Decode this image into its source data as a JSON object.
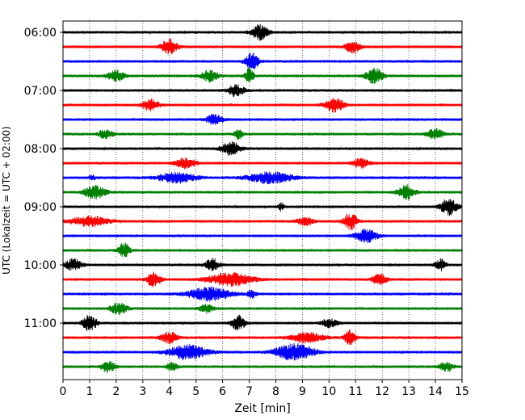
{
  "chart_data": {
    "type": "line",
    "title": "",
    "xlabel": "Zeit  [min]",
    "ylabel": "UTC (Lokalzeit = UTC + 02:00)",
    "xlim": [
      0,
      15
    ],
    "x_ticks": [
      "0",
      "1",
      "2",
      "3",
      "4",
      "5",
      "6",
      "7",
      "8",
      "9",
      "10",
      "11",
      "12",
      "13",
      "14",
      "15"
    ],
    "y_tick_labels": [
      "06:00",
      "07:00",
      "08:00",
      "09:00",
      "10:00",
      "11:00"
    ],
    "grid": "vertical dotted at each minute",
    "legend": "none",
    "trace_interval_minutes": 15,
    "colors": [
      "#000000",
      "#ff0000",
      "#0000ff",
      "#008000"
    ],
    "traces": [
      {
        "start": "06:00",
        "color": "#000000",
        "bursts": [
          [
            7.4,
            0.9,
            0.3
          ]
        ]
      },
      {
        "start": "06:15",
        "color": "#ff0000",
        "bursts": [
          [
            4.0,
            0.9,
            0.3
          ],
          [
            10.9,
            0.8,
            0.25
          ]
        ]
      },
      {
        "start": "06:30",
        "color": "#0000ff",
        "bursts": [
          [
            7.1,
            1.0,
            0.25
          ]
        ]
      },
      {
        "start": "06:45",
        "color": "#008000",
        "bursts": [
          [
            2.0,
            0.7,
            0.3
          ],
          [
            5.5,
            0.7,
            0.3
          ],
          [
            7.0,
            1.0,
            0.15
          ],
          [
            11.7,
            1.0,
            0.3
          ]
        ]
      },
      {
        "start": "07:00",
        "color": "#000000",
        "bursts": [
          [
            6.5,
            0.7,
            0.3
          ]
        ]
      },
      {
        "start": "07:15",
        "color": "#ff0000",
        "bursts": [
          [
            3.3,
            0.7,
            0.3
          ],
          [
            10.2,
            0.9,
            0.35
          ]
        ]
      },
      {
        "start": "07:30",
        "color": "#0000ff",
        "bursts": [
          [
            5.7,
            0.6,
            0.3
          ]
        ]
      },
      {
        "start": "07:45",
        "color": "#008000",
        "bursts": [
          [
            1.6,
            0.6,
            0.25
          ],
          [
            6.6,
            0.6,
            0.15
          ],
          [
            14.0,
            0.6,
            0.3
          ]
        ]
      },
      {
        "start": "08:00",
        "color": "#000000",
        "bursts": [
          [
            6.3,
            0.8,
            0.35
          ]
        ]
      },
      {
        "start": "08:15",
        "color": "#ff0000",
        "bursts": [
          [
            4.6,
            0.7,
            0.35
          ],
          [
            11.2,
            0.6,
            0.3
          ]
        ]
      },
      {
        "start": "08:30",
        "color": "#0000ff",
        "bursts": [
          [
            1.1,
            0.4,
            0.1
          ],
          [
            4.3,
            0.6,
            0.7
          ],
          [
            7.8,
            0.7,
            0.8
          ]
        ]
      },
      {
        "start": "08:45",
        "color": "#008000",
        "bursts": [
          [
            1.2,
            0.8,
            0.4
          ],
          [
            12.9,
            0.9,
            0.3
          ]
        ]
      },
      {
        "start": "09:00",
        "color": "#000000",
        "bursts": [
          [
            8.2,
            0.5,
            0.1
          ],
          [
            14.5,
            1.0,
            0.3
          ]
        ]
      },
      {
        "start": "09:15",
        "color": "#ff0000",
        "bursts": [
          [
            1.0,
            0.6,
            0.7
          ],
          [
            9.1,
            0.5,
            0.3
          ],
          [
            10.8,
            1.0,
            0.25
          ]
        ]
      },
      {
        "start": "09:30",
        "color": "#0000ff",
        "bursts": [
          [
            11.4,
            0.8,
            0.4
          ]
        ]
      },
      {
        "start": "09:45",
        "color": "#008000",
        "bursts": [
          [
            2.3,
            0.9,
            0.2
          ]
        ]
      },
      {
        "start": "10:00",
        "color": "#000000",
        "bursts": [
          [
            0.4,
            0.7,
            0.3
          ],
          [
            5.6,
            0.8,
            0.25
          ],
          [
            14.2,
            0.7,
            0.2
          ]
        ]
      },
      {
        "start": "10:15",
        "color": "#ff0000",
        "bursts": [
          [
            3.4,
            0.9,
            0.25
          ],
          [
            6.3,
            0.8,
            0.8
          ],
          [
            11.9,
            0.7,
            0.25
          ]
        ]
      },
      {
        "start": "10:30",
        "color": "#0000ff",
        "bursts": [
          [
            5.5,
            0.8,
            0.8
          ],
          [
            7.1,
            0.5,
            0.15
          ]
        ]
      },
      {
        "start": "10:45",
        "color": "#008000",
        "bursts": [
          [
            2.1,
            0.7,
            0.3
          ],
          [
            5.4,
            0.5,
            0.25
          ]
        ]
      },
      {
        "start": "11:00",
        "color": "#000000",
        "bursts": [
          [
            1.0,
            1.0,
            0.25
          ],
          [
            6.6,
            0.9,
            0.25
          ],
          [
            10.0,
            0.5,
            0.3
          ]
        ]
      },
      {
        "start": "11:15",
        "color": "#ff0000",
        "bursts": [
          [
            4.0,
            0.7,
            0.3
          ],
          [
            9.2,
            0.6,
            0.6
          ],
          [
            10.8,
            0.9,
            0.2
          ]
        ]
      },
      {
        "start": "11:30",
        "color": "#0000ff",
        "bursts": [
          [
            4.7,
            0.9,
            0.7
          ],
          [
            8.7,
            1.0,
            0.7
          ]
        ]
      },
      {
        "start": "11:45",
        "color": "#008000",
        "bursts": [
          [
            1.7,
            0.7,
            0.25
          ],
          [
            4.1,
            0.5,
            0.2
          ],
          [
            14.4,
            0.6,
            0.25
          ]
        ]
      }
    ]
  }
}
